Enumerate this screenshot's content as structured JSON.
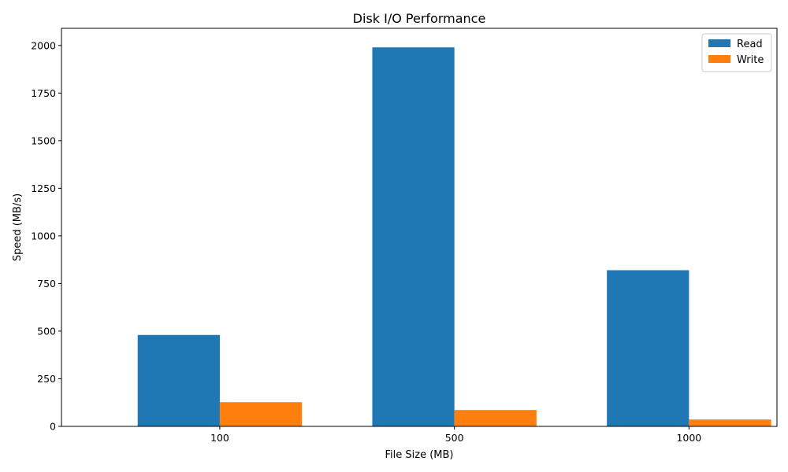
{
  "chart_data": {
    "type": "bar",
    "title": "Disk I/O Performance",
    "xlabel": "File Size (MB)",
    "ylabel": "Speed (MB/s)",
    "categories": [
      "100",
      "500",
      "1000"
    ],
    "series": [
      {
        "name": "Read",
        "color": "#1f77b4",
        "values": [
          480,
          1990,
          820
        ]
      },
      {
        "name": "Write",
        "color": "#ff7f0e",
        "values": [
          127,
          86,
          36
        ]
      }
    ],
    "ylim": [
      0,
      2090
    ],
    "yticks": [
      0,
      250,
      500,
      750,
      1000,
      1250,
      1500,
      1750,
      2000
    ],
    "ytick_labels": [
      "0",
      "250",
      "500",
      "750",
      "1000",
      "1250",
      "1500",
      "1750",
      "2000"
    ],
    "grid": false,
    "legend_position": "top-right"
  }
}
